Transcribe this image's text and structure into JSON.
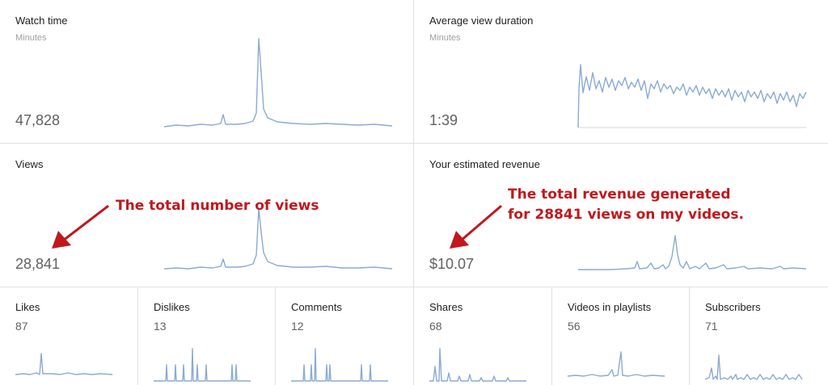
{
  "metrics": {
    "watch_time": {
      "title": "Watch time",
      "unit": "Minutes",
      "value": "47,828"
    },
    "avg_view_duration": {
      "title": "Average view duration",
      "unit": "Minutes",
      "value": "1:39"
    },
    "views": {
      "title": "Views",
      "value": "28,841"
    },
    "revenue": {
      "title": "Your estimated revenue",
      "value": "$10.07"
    }
  },
  "small_metrics": [
    {
      "title": "Likes",
      "value": "87"
    },
    {
      "title": "Dislikes",
      "value": "13"
    },
    {
      "title": "Comments",
      "value": "12"
    },
    {
      "title": "Shares",
      "value": "68"
    },
    {
      "title": "Videos in playlists",
      "value": "56"
    },
    {
      "title": "Subscribers",
      "value": "71"
    }
  ],
  "annotations": {
    "views_note": "The total number of views",
    "revenue_note_line1": "The total revenue generated",
    "revenue_note_line2": "for 28841 views on my videos."
  },
  "colors": {
    "sparkline": "#8aaad4",
    "annotation": "#c0181d",
    "divider": "#e0e0e0"
  }
}
